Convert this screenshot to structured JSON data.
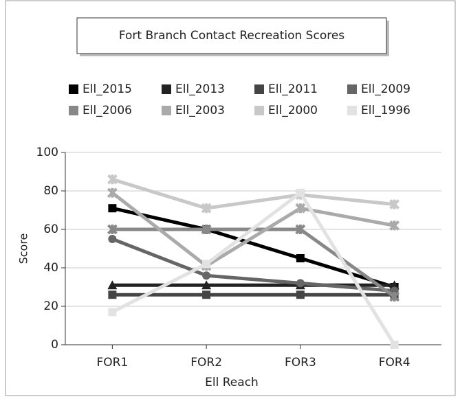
{
  "chart_data": {
    "type": "line",
    "title": "Fort Branch Contact Recreation Scores",
    "x_label": "Ell Reach",
    "y_label": "Score",
    "categories": [
      "FOR1",
      "FOR2",
      "FOR3",
      "FOR4"
    ],
    "ylim": [
      0,
      100
    ],
    "yticks": [
      0,
      20,
      40,
      60,
      80,
      100
    ],
    "grid": true,
    "series": [
      {
        "name": "Ell_2015",
        "color": "#000000",
        "values": [
          71,
          60,
          45,
          30
        ]
      },
      {
        "name": "Ell_2013",
        "color": "#222222",
        "values": [
          31,
          31,
          31,
          31
        ]
      },
      {
        "name": "Ell_2011",
        "color": "#444444",
        "values": [
          26,
          26,
          26,
          26
        ]
      },
      {
        "name": "Ell_2009",
        "color": "#666666",
        "values": [
          55,
          36,
          32,
          28
        ]
      },
      {
        "name": "Ell_2006",
        "color": "#888888",
        "values": [
          60,
          60,
          60,
          25
        ]
      },
      {
        "name": "Ell_2003",
        "color": "#aaaaaa",
        "values": [
          79,
          41,
          71,
          62
        ]
      },
      {
        "name": "Ell_2000",
        "color": "#c8c8c8",
        "values": [
          86,
          71,
          78,
          73
        ]
      },
      {
        "name": "Ell_1996",
        "color": "#e2e2e2",
        "values": [
          17,
          42,
          79,
          0
        ]
      }
    ]
  }
}
